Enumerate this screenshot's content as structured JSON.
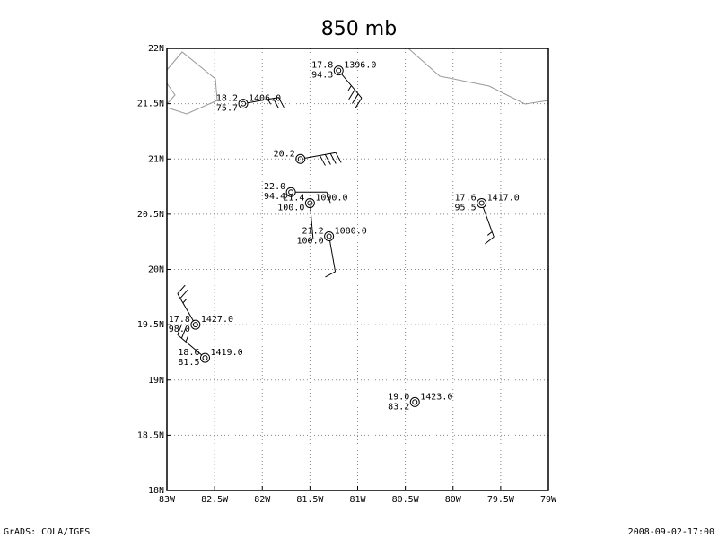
{
  "chart_data": {
    "type": "station",
    "title": "850 mb",
    "xlim": [
      -83,
      -79
    ],
    "ylim": [
      18,
      22
    ],
    "xticks": [
      {
        "value": -83,
        "label": "83W"
      },
      {
        "value": -82.5,
        "label": "82.5W"
      },
      {
        "value": -82,
        "label": "82W"
      },
      {
        "value": -81.5,
        "label": "81.5W"
      },
      {
        "value": -81,
        "label": "81W"
      },
      {
        "value": -80.5,
        "label": "80.5W"
      },
      {
        "value": -80,
        "label": "80W"
      },
      {
        "value": -79.5,
        "label": "79.5W"
      },
      {
        "value": -79,
        "label": "79W"
      }
    ],
    "yticks": [
      {
        "value": 18,
        "label": "18N"
      },
      {
        "value": 18.5,
        "label": "18.5N"
      },
      {
        "value": 19,
        "label": "19N"
      },
      {
        "value": 19.5,
        "label": "19.5N"
      },
      {
        "value": 20,
        "label": "20N"
      },
      {
        "value": 20.5,
        "label": "20.5N"
      },
      {
        "value": 21,
        "label": "21N"
      },
      {
        "value": 21.5,
        "label": "21.5N"
      },
      {
        "value": 22,
        "label": "22N"
      }
    ],
    "grid": true,
    "stations": [
      {
        "lon": -81.2,
        "lat": 21.8,
        "temp": "17.8",
        "height": "1396.0",
        "rh": "94.3",
        "wind_dir": 140,
        "wind_speed": 35
      },
      {
        "lon": -82.2,
        "lat": 21.5,
        "temp": "18.2",
        "height": "1406.0",
        "rh": "75.7",
        "wind_dir": 80,
        "wind_speed": 25
      },
      {
        "lon": -81.6,
        "lat": 21.0,
        "temp": "20.2",
        "height": null,
        "rh": null,
        "wind_dir": 80,
        "wind_speed": 40
      },
      {
        "lon": -81.7,
        "lat": 20.7,
        "temp": "22.0",
        "height": null,
        "rh": "94.4",
        "wind_dir": 90,
        "wind_speed": 10
      },
      {
        "lon": -81.5,
        "lat": 20.6,
        "temp": "21.4",
        "height": "1090.0",
        "rh": "100.0",
        "wind_dir": 175,
        "wind_speed": 5
      },
      {
        "lon": -81.3,
        "lat": 20.3,
        "temp": "21.2",
        "height": "1080.0",
        "rh": "100.0",
        "wind_dir": 170,
        "wind_speed": 10
      },
      {
        "lon": -79.7,
        "lat": 20.6,
        "temp": "17.6",
        "height": "1417.0",
        "rh": "95.5",
        "wind_dir": 160,
        "wind_speed": 15
      },
      {
        "lon": -82.7,
        "lat": 19.5,
        "temp": "17.8",
        "height": "1427.0",
        "rh": "98.0",
        "wind_dir": 330,
        "wind_speed": 25
      },
      {
        "lon": -82.6,
        "lat": 19.2,
        "temp": "18.6",
        "height": "1419.0",
        "rh": "81.5",
        "wind_dir": 310,
        "wind_speed": 25
      },
      {
        "lon": -80.4,
        "lat": 18.8,
        "temp": "19.0",
        "height": "1423.0",
        "rh": "83.2",
        "wind_dir": null,
        "wind_speed": null
      }
    ]
  },
  "footer": {
    "left": "GrADS: COLA/IGES",
    "right": "2008-09-02-17:00"
  }
}
